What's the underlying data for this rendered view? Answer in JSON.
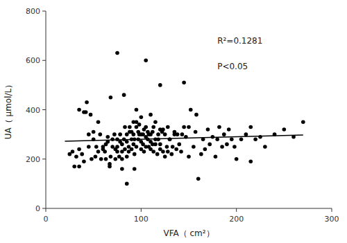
{
  "chart_data": {
    "type": "scatter",
    "title": "",
    "xlabel": "VFA（ cm²）",
    "ylabel": "UA（ μmol/L）",
    "xlim": [
      0,
      300
    ],
    "ylim": [
      0,
      800
    ],
    "xticks": [
      0,
      100,
      200,
      300
    ],
    "yticks": [
      0,
      200,
      400,
      600,
      800
    ],
    "grid": false,
    "annotations": [
      "R²=0.1281",
      "P<0.05"
    ],
    "series": [
      {
        "type": "scatter",
        "color": "#000000",
        "marker": "circle",
        "x": [
          25,
          28,
          30,
          32,
          35,
          35,
          38,
          40,
          42,
          43,
          45,
          45,
          47,
          48,
          50,
          50,
          52,
          53,
          55,
          55,
          57,
          58,
          60,
          60,
          62,
          63,
          63,
          65,
          65,
          67,
          68,
          70,
          70,
          72,
          73,
          73,
          75,
          75,
          75,
          77,
          78,
          78,
          80,
          80,
          80,
          82,
          83,
          83,
          85,
          85,
          85,
          87,
          87,
          88,
          88,
          90,
          90,
          90,
          92,
          92,
          92,
          93,
          93,
          95,
          95,
          95,
          95,
          97,
          97,
          98,
          98,
          100,
          100,
          100,
          100,
          102,
          102,
          103,
          103,
          105,
          105,
          105,
          107,
          107,
          108,
          108,
          110,
          110,
          110,
          110,
          112,
          112,
          113,
          113,
          115,
          115,
          115,
          117,
          118,
          118,
          120,
          120,
          120,
          122,
          123,
          123,
          125,
          125,
          127,
          128,
          128,
          130,
          130,
          132,
          133,
          135,
          135,
          137,
          138,
          140,
          142,
          143,
          145,
          147,
          150,
          150,
          152,
          155,
          157,
          158,
          160,
          163,
          165,
          167,
          170,
          172,
          175,
          178,
          180,
          182,
          185,
          187,
          190,
          192,
          195,
          198,
          200,
          205,
          210,
          215,
          220,
          225,
          230,
          240,
          250,
          260,
          270,
          75,
          105,
          85,
          67,
          35,
          80,
          93,
          68,
          82,
          120,
          145,
          40,
          215
        ],
        "values": [
          220,
          230,
          170,
          210,
          240,
          400,
          220,
          190,
          390,
          430,
          250,
          300,
          380,
          200,
          280,
          310,
          210,
          250,
          230,
          350,
          300,
          200,
          240,
          250,
          230,
          260,
          200,
          290,
          270,
          180,
          210,
          250,
          280,
          300,
          200,
          240,
          230,
          280,
          250,
          210,
          270,
          300,
          230,
          200,
          260,
          280,
          240,
          330,
          210,
          300,
          270,
          230,
          250,
          310,
          330,
          240,
          310,
          280,
          300,
          260,
          350,
          280,
          220,
          250,
          350,
          330,
          400,
          310,
          280,
          300,
          340,
          270,
          240,
          300,
          370,
          300,
          260,
          230,
          320,
          290,
          250,
          330,
          310,
          280,
          300,
          250,
          270,
          240,
          300,
          380,
          310,
          260,
          230,
          330,
          280,
          260,
          350,
          220,
          300,
          280,
          260,
          240,
          320,
          310,
          230,
          320,
          210,
          300,
          250,
          230,
          330,
          280,
          280,
          220,
          250,
          300,
          310,
          240,
          300,
          260,
          230,
          300,
          330,
          290,
          210,
          330,
          400,
          250,
          310,
          380,
          120,
          220,
          280,
          240,
          320,
          260,
          290,
          210,
          280,
          330,
          250,
          300,
          260,
          320,
          280,
          250,
          200,
          280,
          300,
          330,
          280,
          290,
          250,
          300,
          320,
          290,
          350,
          630,
          600,
          100,
          170,
          170,
          160,
          160,
          450,
          460,
          500,
          510,
          390,
          190
        ]
      },
      {
        "type": "line",
        "color": "#000000",
        "line_style": "solid",
        "x": [
          20,
          270
        ],
        "values": [
          271.9707,
          297.6152
        ]
      }
    ]
  }
}
